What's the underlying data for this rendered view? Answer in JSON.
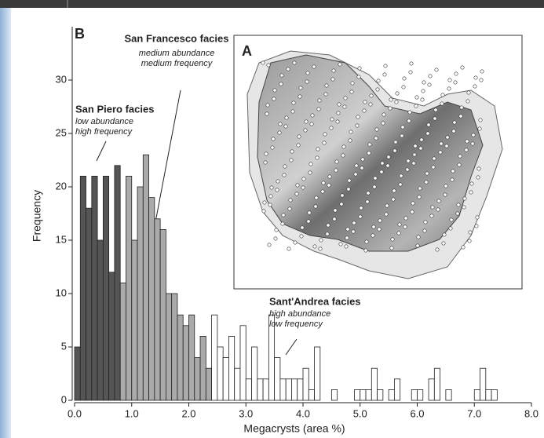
{
  "chart_data": {
    "type": "histogram",
    "panel_label": "B",
    "inset_label": "A",
    "x_label": "Megacrysts (area %)",
    "y_label": "Frequency",
    "bins": [
      0.0,
      0.1,
      0.2,
      0.3,
      0.4,
      0.5,
      0.6,
      0.7,
      0.8,
      0.9,
      1.0,
      1.1,
      1.2,
      1.3,
      1.4,
      1.5,
      1.6,
      1.7,
      1.8,
      1.9,
      2.0,
      2.1,
      2.2,
      2.3,
      2.4,
      2.5,
      2.6,
      2.7,
      2.8,
      2.9,
      3.0,
      3.1,
      3.2,
      3.3,
      3.4,
      3.5,
      3.6,
      3.7,
      3.8,
      3.9,
      4.0,
      4.1,
      4.2,
      4.3,
      4.4,
      4.5,
      4.6,
      4.7,
      4.8,
      4.9,
      5.0,
      5.1,
      5.2,
      5.3,
      5.4,
      5.5,
      5.6,
      5.7,
      5.8,
      5.9,
      6.0,
      6.1,
      6.2,
      6.3,
      6.4,
      6.5,
      6.6,
      6.7,
      6.8,
      6.9,
      7.0,
      7.1,
      7.2,
      7.3,
      7.4
    ],
    "counts": [
      5,
      21,
      18,
      21,
      15,
      21,
      12,
      22,
      11,
      21,
      15,
      20,
      23,
      19,
      17,
      16,
      10,
      10,
      8,
      7,
      8,
      4,
      6,
      3,
      8,
      5,
      4,
      6,
      3,
      7,
      2,
      5,
      2,
      2,
      8,
      4,
      2,
      2,
      2,
      2,
      3,
      1,
      5,
      0,
      0,
      1,
      0,
      0,
      0,
      1,
      1,
      1,
      3,
      1,
      0,
      1,
      2,
      0,
      0,
      1,
      1,
      0,
      2,
      3,
      0,
      1,
      0,
      0,
      0,
      0,
      1,
      3,
      1,
      1
    ],
    "colors": [
      "#555555",
      "#555555",
      "#555555",
      "#555555",
      "#555555",
      "#555555",
      "#555555",
      "#555555",
      "#aaaaaa",
      "#aaaaaa",
      "#aaaaaa",
      "#aaaaaa",
      "#aaaaaa",
      "#aaaaaa",
      "#aaaaaa",
      "#aaaaaa",
      "#aaaaaa",
      "#aaaaaa",
      "#aaaaaa",
      "#aaaaaa",
      "#aaaaaa",
      "#aaaaaa",
      "#aaaaaa",
      "#aaaaaa",
      "#ffffff",
      "#ffffff",
      "#ffffff",
      "#ffffff",
      "#ffffff",
      "#ffffff",
      "#ffffff",
      "#ffffff",
      "#ffffff",
      "#ffffff",
      "#ffffff",
      "#ffffff",
      "#ffffff",
      "#ffffff",
      "#ffffff",
      "#ffffff",
      "#ffffff",
      "#ffffff",
      "#ffffff",
      "#ffffff",
      "#ffffff",
      "#ffffff",
      "#ffffff",
      "#ffffff",
      "#ffffff",
      "#ffffff",
      "#ffffff",
      "#ffffff",
      "#ffffff",
      "#ffffff",
      "#ffffff",
      "#ffffff",
      "#ffffff",
      "#ffffff",
      "#ffffff",
      "#ffffff",
      "#ffffff",
      "#ffffff",
      "#ffffff",
      "#ffffff",
      "#ffffff",
      "#ffffff",
      "#ffffff",
      "#ffffff",
      "#ffffff",
      "#ffffff",
      "#ffffff",
      "#ffffff",
      "#ffffff",
      "#ffffff"
    ],
    "xlim": [
      0,
      8
    ],
    "ylim": [
      0,
      35
    ],
    "xticks": [
      {
        "value": 0,
        "label": "0.0"
      },
      {
        "value": 1,
        "label": "1.0"
      },
      {
        "value": 2,
        "label": "2.0"
      },
      {
        "value": 3,
        "label": "3.0"
      },
      {
        "value": 4,
        "label": "4.0"
      },
      {
        "value": 5,
        "label": "5.0"
      },
      {
        "value": 6,
        "label": "6.0"
      },
      {
        "value": 7,
        "label": "7.0"
      },
      {
        "value": 8,
        "label": "8.0"
      }
    ],
    "yticks": [
      0,
      5,
      10,
      15,
      20,
      25,
      30
    ],
    "annotations": [
      {
        "title": "San Piero facies",
        "lines": [
          "low abundance",
          "high frequency"
        ]
      },
      {
        "title": "San Francesco facies",
        "lines": [
          "medium abundance",
          "medium frequency"
        ]
      },
      {
        "title": "Sant'Andrea facies",
        "lines": [
          "high abundance",
          "low frequency"
        ]
      }
    ]
  }
}
